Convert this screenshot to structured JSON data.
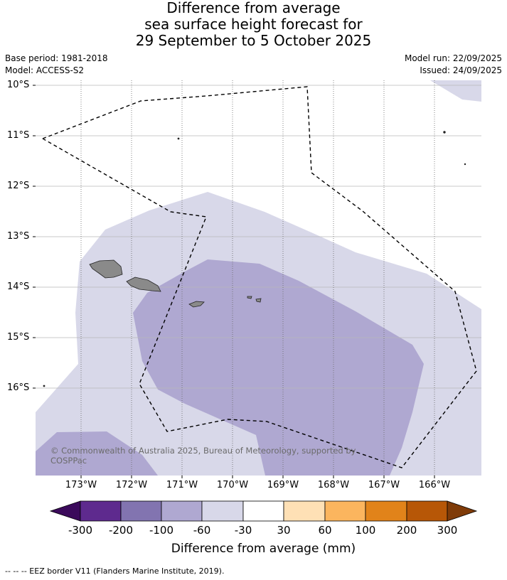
{
  "title": {
    "line1": "Difference from average",
    "line2": "sea surface height forecast for",
    "line3": "29 September to 5 October 2025"
  },
  "meta": {
    "base_period": "Base period: 1981-2018",
    "model": "Model: ACCESS-S2",
    "model_run": "Model run: 22/09/2025",
    "issued": "Issued: 24/09/2025"
  },
  "lat_labels": [
    "10°S",
    "11°S",
    "12°S",
    "13°S",
    "14°S",
    "15°S",
    "16°S"
  ],
  "lon_labels": [
    "173°W",
    "172°W",
    "171°W",
    "170°W",
    "169°W",
    "168°W",
    "167°W",
    "166°W"
  ],
  "copyright": "© Commonwealth of Australia 2025, Bureau of Meteorology, supported by COSPPac",
  "colorbar": {
    "title": "Difference from average (mm)",
    "tick_labels": [
      "-300",
      "-200",
      "-100",
      "-60",
      "-30",
      "30",
      "60",
      "100",
      "200",
      "300"
    ],
    "colors": [
      "#3b0a5b",
      "#5e2a8e",
      "#8274b0",
      "#afa8d1",
      "#d8d8e9",
      "#ffffff",
      "#fee0b5",
      "#fbb55e",
      "#e1831a",
      "#b75707",
      "#7f3b08"
    ]
  },
  "legend_note": "-- -- -- EEZ border V11 (Flanders Marine Institute, 2019).",
  "map_colors": {
    "ocean_light": "#d8d8e9",
    "ocean_mid": "#afa8d1",
    "land": "#8a8a8a"
  }
}
